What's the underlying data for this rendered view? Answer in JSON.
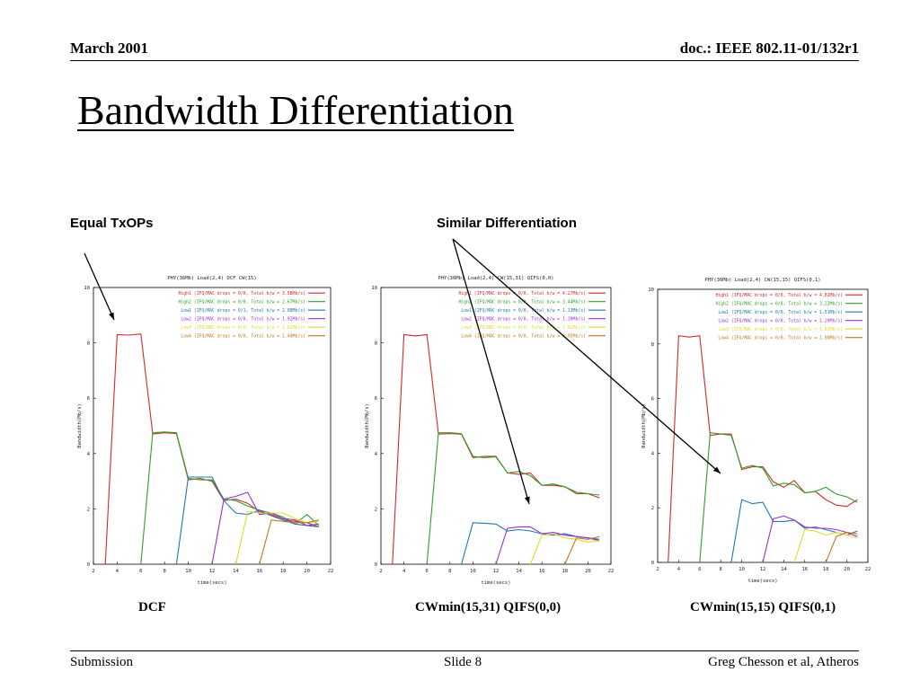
{
  "header": {
    "date": "March  2001",
    "doc": "doc.: IEEE 802.11-01/132r1"
  },
  "title": "Bandwidth Differentiation",
  "annotations": {
    "equal": "Equal TxOPs",
    "similar": "Similar Differentiation"
  },
  "captions": [
    "DCF",
    "CWmin(15,31) QIFS(0,0)",
    "CWmin(15,15) QIFS(0,1)"
  ],
  "footer": {
    "left": "Submission",
    "center": "Slide 8",
    "right": "Greg Chesson et al, Atheros"
  },
  "series_colors": [
    "#d62728",
    "#2ca02c",
    "#1f77b4",
    "#9b30c8",
    "#e0dc28",
    "#c0781e"
  ],
  "chart_data": [
    {
      "type": "line",
      "title": "PHY(36Mb) Load(2,4) DCF CW(15)",
      "xlabel": "time(secs)",
      "ylabel": "Bandwidth(Mb/s)",
      "xlim": [
        2,
        22
      ],
      "ylim": [
        0,
        10
      ],
      "xticks": [
        2,
        4,
        6,
        8,
        10,
        12,
        14,
        16,
        18,
        20,
        22
      ],
      "yticks": [
        0,
        2,
        4,
        6,
        8,
        10
      ],
      "legend_position": "top-right",
      "series": [
        {
          "name": "High1 (IFQ/MAC drops = 0/0, Total b/w = 3.58Mb/s)",
          "x": [
            3,
            4,
            5,
            6,
            7,
            8,
            9,
            10,
            11,
            12,
            13,
            14,
            15,
            16,
            17,
            18,
            19,
            20,
            21
          ],
          "y": [
            0,
            8.3,
            8.28,
            8.32,
            4.7,
            4.75,
            4.72,
            3.05,
            3.1,
            3.0,
            2.3,
            2.35,
            2.2,
            1.9,
            1.8,
            1.6,
            1.55,
            1.5,
            1.35
          ]
        },
        {
          "name": "High2 (IFQ/MAC drops = 0/0, Total b/w = 2.67Mb/s)",
          "x": [
            6,
            7,
            8,
            9,
            10,
            11,
            12,
            13,
            14,
            15,
            16,
            17,
            18,
            19,
            20,
            21
          ],
          "y": [
            0,
            4.75,
            4.78,
            4.75,
            3.1,
            3.05,
            3.05,
            2.35,
            2.3,
            2.1,
            1.95,
            1.85,
            1.7,
            1.45,
            1.8,
            1.4
          ]
        },
        {
          "name": "Low1 (IFQ/MAC drops = 0/1, Total b/w = 2.08Mb/s)",
          "x": [
            9,
            10,
            11,
            12,
            13,
            14,
            15,
            16,
            17,
            18,
            19,
            20,
            21
          ],
          "y": [
            0,
            3.15,
            3.15,
            3.15,
            2.3,
            1.85,
            1.8,
            1.95,
            1.75,
            1.6,
            1.45,
            1.4,
            1.35
          ]
        },
        {
          "name": "Low2 (IFQ/MAC drops = 0/0, Total b/w = 1.92Mb/s)",
          "x": [
            12,
            13,
            14,
            15,
            16,
            17,
            18,
            19,
            20,
            21
          ],
          "y": [
            0,
            2.35,
            2.45,
            2.6,
            1.8,
            1.85,
            1.65,
            1.6,
            1.4,
            1.45
          ]
        },
        {
          "name": "Low3 (IFQ/MAC drops = 0/0, Total b/w = 1.62Mb/s)",
          "x": [
            14,
            15,
            16,
            17,
            18,
            19,
            20,
            21
          ],
          "y": [
            0,
            1.9,
            1.85,
            1.85,
            1.85,
            1.65,
            1.5,
            1.55
          ]
        },
        {
          "name": "Low4 (IFQ/MAC drops = 0/0, Total b/w = 1.49Mb/s)",
          "x": [
            16,
            17,
            18,
            19,
            20,
            21
          ],
          "y": [
            0,
            1.6,
            1.55,
            1.5,
            1.5,
            1.6
          ]
        }
      ]
    },
    {
      "type": "line",
      "title": "PHY(36Mb) Load(2,4) CW(15,31) QIFS(0,0)",
      "xlabel": "time(secs)",
      "ylabel": "Bandwidth(Mb/s)",
      "xlim": [
        2,
        22
      ],
      "ylim": [
        0,
        10
      ],
      "xticks": [
        2,
        4,
        6,
        8,
        10,
        12,
        14,
        16,
        18,
        20,
        22
      ],
      "yticks": [
        0,
        2,
        4,
        6,
        8,
        10
      ],
      "legend_position": "top-right",
      "series": [
        {
          "name": "High1 (IFQ/MAC drops = 0/0, Total b/w = 4.27Mb/s)",
          "x": [
            3,
            4,
            5,
            6,
            7,
            8,
            9,
            10,
            11,
            12,
            13,
            14,
            15,
            16,
            17,
            18,
            19,
            20,
            21
          ],
          "y": [
            0,
            8.3,
            8.25,
            8.3,
            4.7,
            4.72,
            4.7,
            3.85,
            3.9,
            3.9,
            3.3,
            3.25,
            3.3,
            2.85,
            2.85,
            2.8,
            2.55,
            2.55,
            2.4
          ]
        },
        {
          "name": "High2 (IFQ/MAC drops = 0/0, Total b/w = 3.44Mb/s)",
          "x": [
            6,
            7,
            8,
            9,
            10,
            11,
            12,
            13,
            14,
            15,
            16,
            17,
            18,
            19,
            20,
            21
          ],
          "y": [
            0,
            4.75,
            4.75,
            4.72,
            3.9,
            3.85,
            3.88,
            3.3,
            3.35,
            3.2,
            2.85,
            2.9,
            2.8,
            2.6,
            2.55,
            2.5
          ]
        },
        {
          "name": "Low1 (IFQ/MAC drops = 0/0, Total b/w = 1.13Mb/s)",
          "x": [
            9,
            10,
            11,
            12,
            13,
            14,
            15,
            16,
            17,
            18,
            19,
            20,
            21
          ],
          "y": [
            0,
            1.5,
            1.48,
            1.45,
            1.2,
            1.25,
            1.2,
            1.1,
            1.05,
            1.1,
            1.0,
            0.95,
            0.9
          ]
        },
        {
          "name": "Low2 (IFQ/MAC drops = 0/0, Total b/w = 1.10Mb/s)",
          "x": [
            12,
            13,
            14,
            15,
            16,
            17,
            18,
            19,
            20,
            21
          ],
          "y": [
            0,
            1.3,
            1.35,
            1.35,
            1.1,
            1.15,
            1.05,
            1.0,
            0.95,
            0.85
          ]
        },
        {
          "name": "Low3 (IFQ/MAC drops = 0/0, Total b/w = 1.02Mb/s)",
          "x": [
            15,
            16,
            17,
            18,
            19,
            20,
            21
          ],
          "y": [
            0,
            1.05,
            1.1,
            0.95,
            0.9,
            0.8,
            0.85
          ]
        },
        {
          "name": "Low4 (IFQ/MAC drops = 0/0, Total b/w = 0.95Mb/s)",
          "x": [
            18,
            19,
            20,
            21
          ],
          "y": [
            0,
            0.95,
            0.9,
            1.0
          ]
        }
      ]
    },
    {
      "type": "line",
      "title": "PHY(36Mb) Load(2,4) CW(15,15) QIFS(0,1)",
      "xlabel": "time(secs)",
      "ylabel": "Bandwidth(Mb/s)",
      "xlim": [
        2,
        22
      ],
      "ylim": [
        0,
        10
      ],
      "xticks": [
        2,
        4,
        6,
        8,
        10,
        12,
        14,
        16,
        18,
        20,
        22
      ],
      "yticks": [
        0,
        2,
        4,
        6,
        8,
        10
      ],
      "legend_position": "top-right",
      "series": [
        {
          "name": "High1 (IFQ/MAC drops = 0/0, Total b/w = 4.02Mb/s)",
          "x": [
            3,
            4,
            5,
            6,
            7,
            8,
            9,
            10,
            11,
            12,
            13,
            14,
            15,
            16,
            17,
            18,
            19,
            20,
            21
          ],
          "y": [
            0,
            8.3,
            8.25,
            8.3,
            4.65,
            4.7,
            4.7,
            3.4,
            3.5,
            3.5,
            2.95,
            2.75,
            3.0,
            2.55,
            2.6,
            2.3,
            2.1,
            2.05,
            2.3
          ]
        },
        {
          "name": "High2 (IFQ/MAC drops = 0/0, Total b/w = 3.22Mb/s)",
          "x": [
            6,
            7,
            8,
            9,
            10,
            11,
            12,
            13,
            14,
            15,
            16,
            17,
            18,
            19,
            20,
            21
          ],
          "y": [
            0,
            4.75,
            4.7,
            4.65,
            3.45,
            3.55,
            3.45,
            2.8,
            2.9,
            2.85,
            2.55,
            2.6,
            2.75,
            2.5,
            2.4,
            2.2
          ]
        },
        {
          "name": "Low1 (IFQ/MAC drops = 0/0, Total b/w = 1.51Mb/s)",
          "x": [
            9,
            10,
            11,
            12,
            13,
            14,
            15,
            16,
            17,
            18,
            19,
            20,
            21
          ],
          "y": [
            0,
            2.3,
            2.15,
            2.2,
            1.5,
            1.5,
            1.55,
            1.25,
            1.3,
            1.2,
            1.1,
            1.0,
            1.15
          ]
        },
        {
          "name": "Low2 (IFQ/MAC drops = 0/0, Total b/w = 1.29Mb/s)",
          "x": [
            12,
            13,
            14,
            15,
            16,
            17,
            18,
            19,
            20,
            21
          ],
          "y": [
            0,
            1.6,
            1.7,
            1.55,
            1.3,
            1.25,
            1.25,
            1.2,
            1.1,
            0.95
          ]
        },
        {
          "name": "Low3 (IFQ/MAC drops = 0/0, Total b/w = 1.02Mb/s)",
          "x": [
            15,
            16,
            17,
            18,
            19,
            20,
            21
          ],
          "y": [
            0,
            1.2,
            1.15,
            1.0,
            1.1,
            1.0,
            0.9
          ]
        },
        {
          "name": "Low4 (IFQ/MAC drops = 0/0, Total b/w = 1.00Mb/s)",
          "x": [
            18,
            19,
            20,
            21
          ],
          "y": [
            0,
            0.95,
            1.1,
            1.05
          ]
        }
      ]
    }
  ]
}
